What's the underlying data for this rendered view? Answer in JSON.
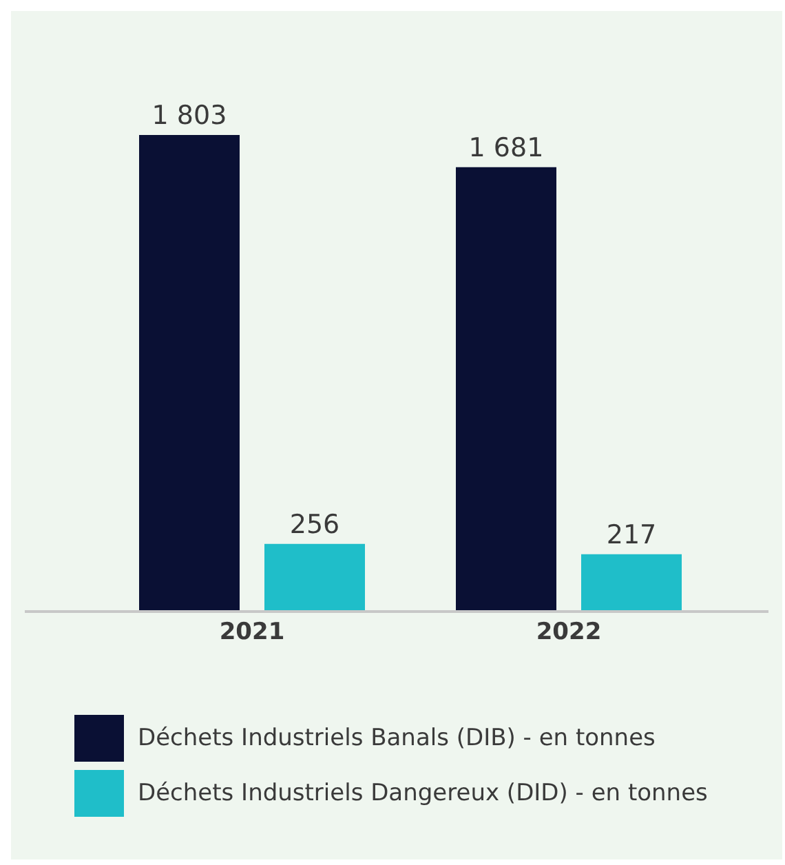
{
  "chart_data": {
    "type": "bar",
    "categories": [
      "2021",
      "2022"
    ],
    "series": [
      {
        "name": "Déchets Industriels Banals (DIB) - en tonnes",
        "color": "#0a1034",
        "values": [
          1803,
          1681
        ],
        "value_labels": [
          "1 803",
          "1 681"
        ]
      },
      {
        "name": "Déchets Industriels Dangereux (DID) - en tonnes",
        "color": "#1fbec9",
        "values": [
          256,
          217
        ],
        "value_labels": [
          "256",
          "217"
        ]
      }
    ],
    "legend": "bottom left"
  }
}
